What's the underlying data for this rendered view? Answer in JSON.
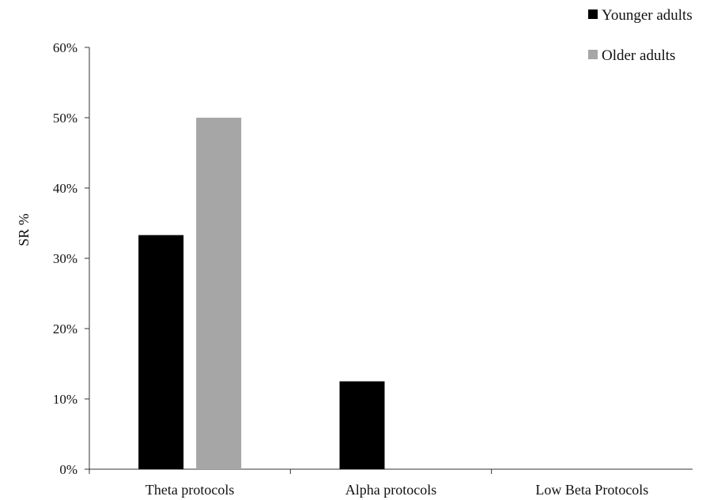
{
  "chart_data": {
    "type": "bar",
    "categories": [
      "Theta protocols",
      "Alpha protocols",
      "Low Beta Protocols"
    ],
    "series": [
      {
        "name": "Younger adults",
        "color": "#000000",
        "values": [
          33.3,
          12.5,
          0
        ]
      },
      {
        "name": "Older adults",
        "color": "#a6a6a6",
        "values": [
          50,
          0,
          0
        ]
      }
    ],
    "ylabel": "SR %",
    "ylim": [
      0,
      60
    ],
    "yticks": [
      0,
      10,
      20,
      30,
      40,
      50,
      60
    ],
    "ytick_labels": [
      "0%",
      "10%",
      "20%",
      "30%",
      "40%",
      "50%",
      "60%"
    ],
    "grid": false,
    "legend_position": "top-right"
  }
}
